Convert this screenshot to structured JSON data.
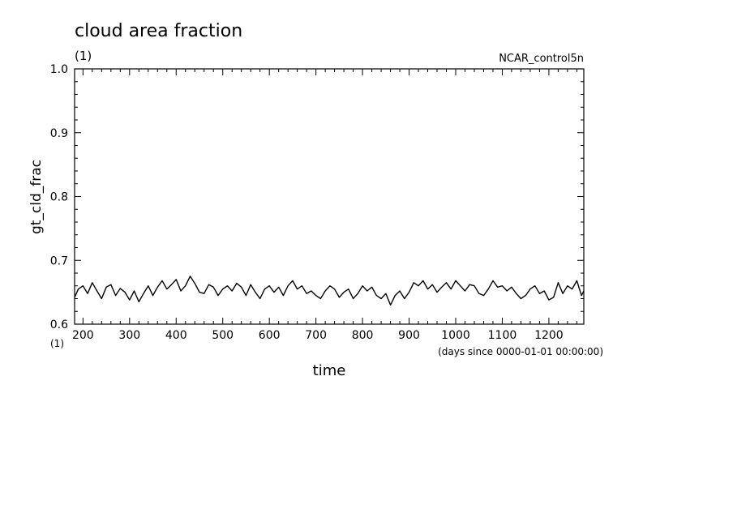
{
  "chart_data": {
    "type": "line",
    "title": "cloud area fraction",
    "title_unit": "(1)",
    "experiment": "NCAR_control5n",
    "ylabel": "gt_cld_frac",
    "xlabel": "time",
    "x_unit_note": "(days since 0000-01-01 00:00:00)",
    "x_unit_left": "(1)",
    "xlim": [
      182,
      1275
    ],
    "ylim": [
      0.6,
      1.0
    ],
    "yticks": [
      "0.6",
      "0.7",
      "0.8",
      "0.9",
      "1.0"
    ],
    "xticks": [
      "200",
      "300",
      "400",
      "500",
      "600",
      "700",
      "800",
      "900",
      "1000",
      "1100",
      "1200"
    ],
    "line_color": "#000000",
    "series": [
      {
        "x": [
          182,
          190,
          200,
          210,
          220,
          230,
          240,
          250,
          260,
          270,
          280,
          290,
          300,
          310,
          320,
          330,
          340,
          350,
          360,
          370,
          380,
          390,
          400,
          410,
          420,
          430,
          440,
          450,
          460,
          470,
          480,
          490,
          500,
          510,
          520,
          530,
          540,
          550,
          560,
          570,
          580,
          590,
          600,
          610,
          620,
          630,
          640,
          650,
          660,
          670,
          680,
          690,
          700,
          710,
          720,
          730,
          740,
          750,
          760,
          770,
          780,
          790,
          800,
          810,
          820,
          830,
          840,
          850,
          860,
          870,
          880,
          890,
          900,
          910,
          920,
          930,
          940,
          950,
          960,
          970,
          980,
          990,
          1000,
          1010,
          1020,
          1030,
          1040,
          1050,
          1060,
          1070,
          1080,
          1090,
          1100,
          1110,
          1120,
          1130,
          1140,
          1150,
          1160,
          1170,
          1180,
          1190,
          1200,
          1210,
          1220,
          1230,
          1240,
          1250,
          1260,
          1270,
          1275
        ],
        "values": [
          0.642,
          0.655,
          0.66,
          0.648,
          0.665,
          0.652,
          0.64,
          0.658,
          0.662,
          0.645,
          0.656,
          0.65,
          0.638,
          0.652,
          0.635,
          0.648,
          0.66,
          0.645,
          0.658,
          0.668,
          0.655,
          0.662,
          0.67,
          0.652,
          0.66,
          0.675,
          0.664,
          0.65,
          0.648,
          0.662,
          0.658,
          0.645,
          0.655,
          0.66,
          0.652,
          0.664,
          0.658,
          0.645,
          0.662,
          0.65,
          0.64,
          0.655,
          0.66,
          0.65,
          0.658,
          0.645,
          0.66,
          0.668,
          0.655,
          0.66,
          0.648,
          0.652,
          0.645,
          0.64,
          0.652,
          0.66,
          0.655,
          0.642,
          0.65,
          0.655,
          0.64,
          0.648,
          0.66,
          0.652,
          0.658,
          0.645,
          0.64,
          0.648,
          0.63,
          0.645,
          0.652,
          0.64,
          0.65,
          0.665,
          0.66,
          0.668,
          0.655,
          0.662,
          0.65,
          0.658,
          0.665,
          0.655,
          0.668,
          0.66,
          0.652,
          0.662,
          0.66,
          0.648,
          0.645,
          0.655,
          0.668,
          0.658,
          0.66,
          0.652,
          0.658,
          0.648,
          0.64,
          0.645,
          0.655,
          0.66,
          0.648,
          0.652,
          0.638,
          0.642,
          0.665,
          0.648,
          0.66,
          0.655,
          0.668,
          0.645,
          0.652
        ]
      }
    ]
  }
}
